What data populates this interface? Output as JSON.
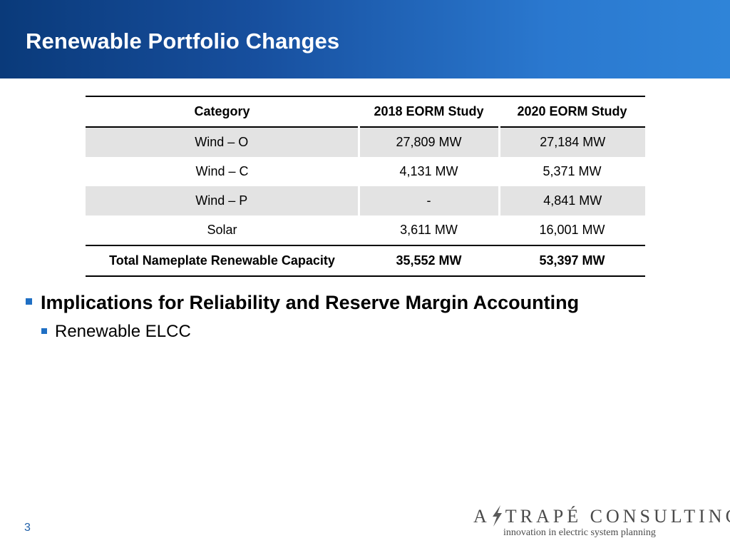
{
  "slide": {
    "title": "Renewable Portfolio Changes",
    "page_number": "3"
  },
  "table": {
    "headers": [
      "Category",
      "2018 EORM Study",
      "2020 EORM Study"
    ],
    "rows": [
      [
        "Wind – O",
        "27,809 MW",
        "27,184 MW"
      ],
      [
        "Wind – C",
        "4,131 MW",
        "5,371 MW"
      ],
      [
        "Wind – P",
        "-",
        "4,841 MW"
      ],
      [
        "Solar",
        "3,611 MW",
        "16,001 MW"
      ]
    ],
    "total": [
      "Total Nameplate Renewable Capacity",
      "35,552 MW",
      "53,397 MW"
    ]
  },
  "bullets": {
    "level1": "Implications for Reliability and Reserve Margin Accounting",
    "level2": "Renewable ELCC"
  },
  "logo": {
    "brand_left": "A",
    "brand_right": "TRAPÉ CONSULTING",
    "tagline": "innovation in electric system planning"
  },
  "colors": {
    "header_gradient_start": "#0a3a7a",
    "header_gradient_end": "#2f84d8",
    "bullet": "#1f6fc4",
    "row_shade": "#e3e3e3"
  }
}
